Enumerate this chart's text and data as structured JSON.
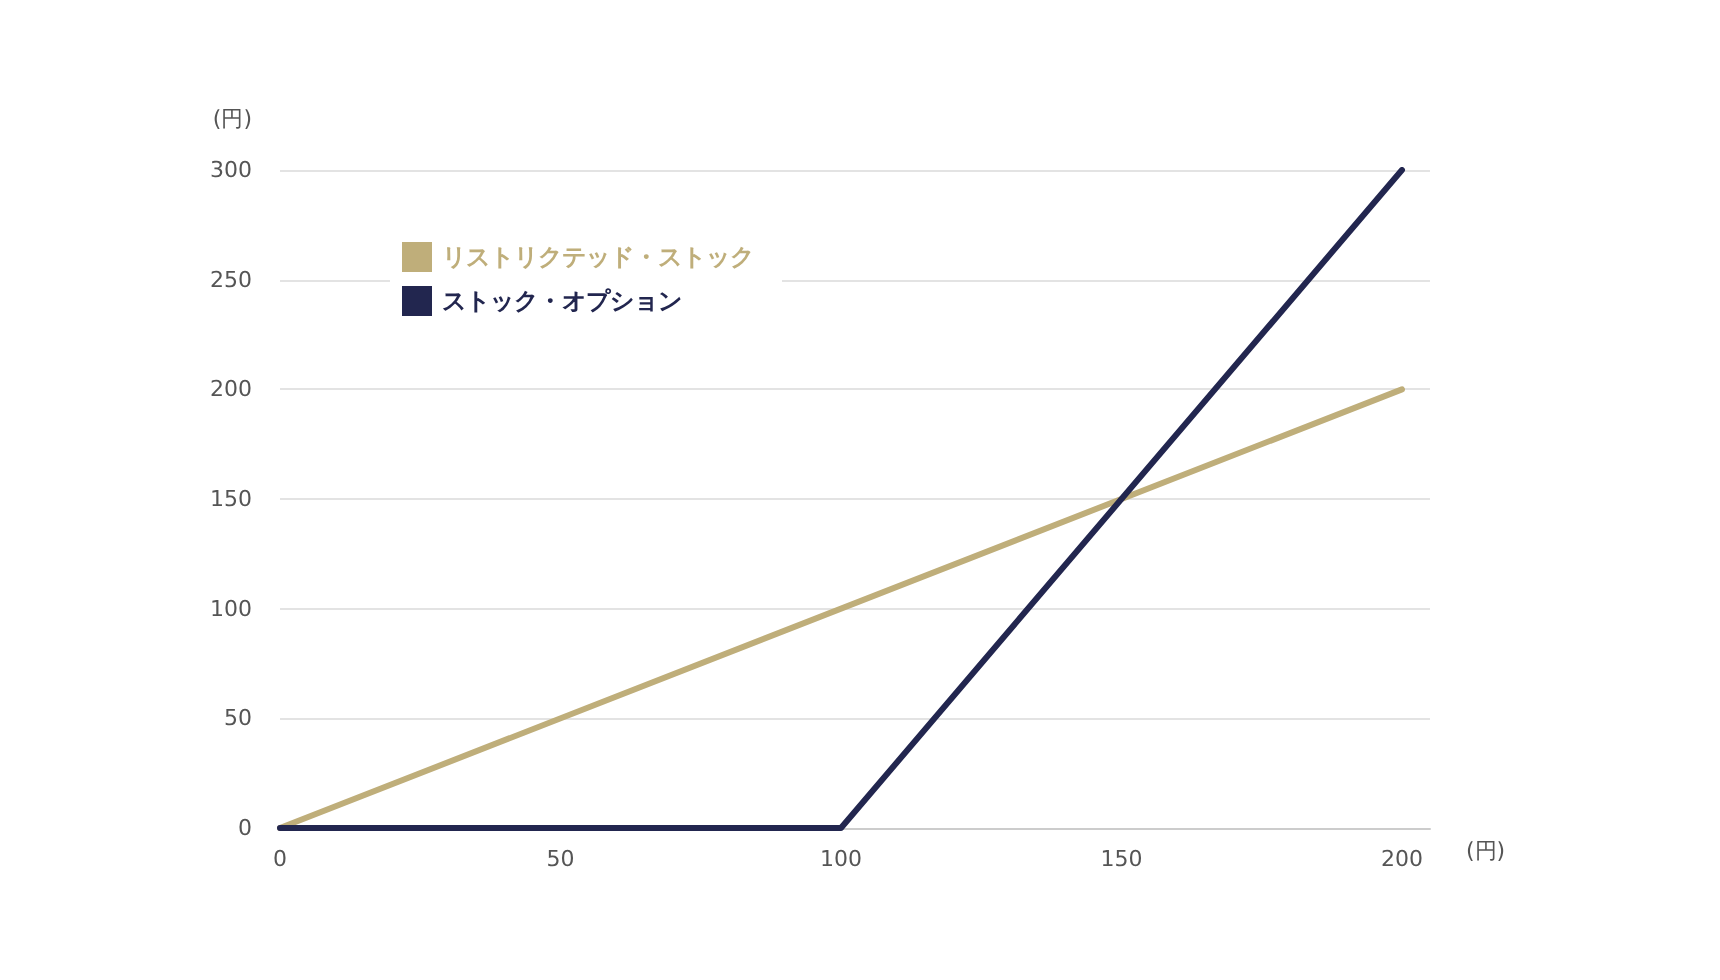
{
  "chart_data": {
    "type": "line",
    "xlabel": "(円)",
    "ylabel": "(円)",
    "series": [
      {
        "name": "リストリクテッド・ストック",
        "color": "#bfae7a",
        "x": [
          0,
          200
        ],
        "values": [
          0,
          200
        ]
      },
      {
        "name": "ストック・オプション",
        "color": "#22264f",
        "x": [
          0,
          100,
          200
        ],
        "values": [
          0,
          0,
          300
        ]
      }
    ],
    "xlim": [
      0,
      205
    ],
    "xticks": [
      0,
      50,
      100,
      150,
      200
    ],
    "ylim": [
      0,
      300
    ],
    "yticks": [
      0,
      50,
      100,
      150,
      200,
      250,
      300
    ],
    "grid": "y",
    "legend": "top left",
    "marker": "none",
    "line_style": "solid"
  }
}
